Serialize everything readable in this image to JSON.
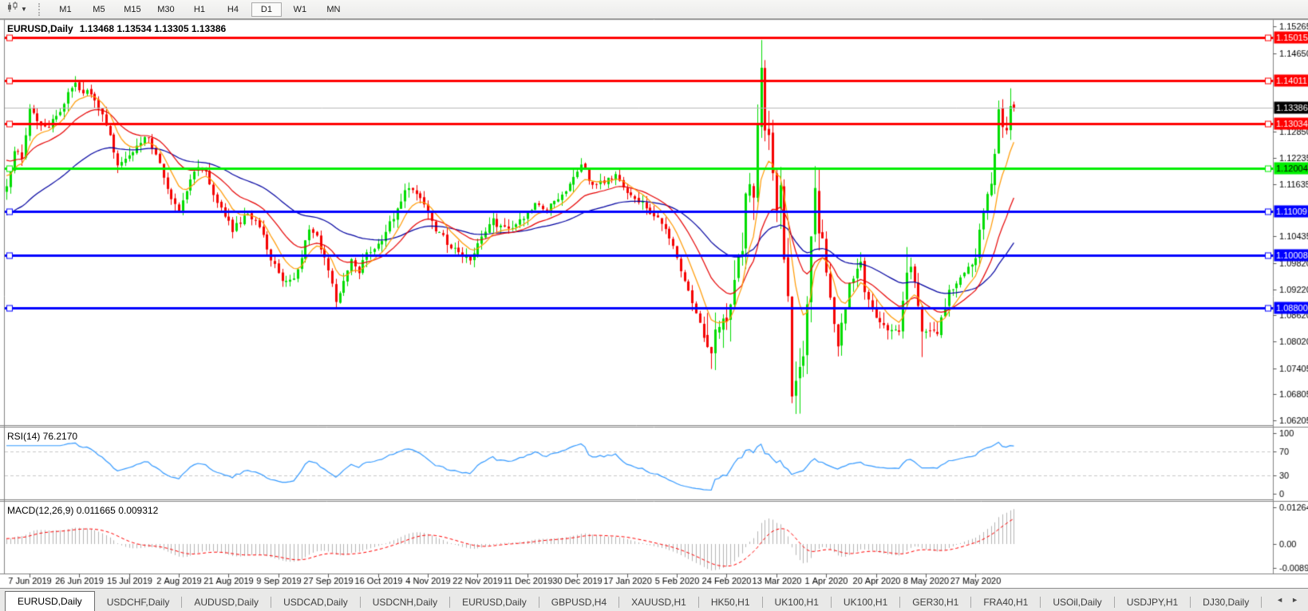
{
  "toolbar": {
    "timeframes": [
      "M1",
      "M5",
      "M15",
      "M30",
      "H1",
      "H4",
      "D1",
      "W1",
      "MN"
    ],
    "active_timeframe": "D1"
  },
  "chart": {
    "symbol_title": "EURUSD,Daily",
    "ohlc_text": "1.13468 1.13534 1.13305 1.13386"
  },
  "rsi_panel": {
    "label": "RSI(14) 76.2170"
  },
  "macd_panel": {
    "label": "MACD(12,26,9) 0.011665 0.009312"
  },
  "tabs": {
    "items": [
      "EURUSD,Daily",
      "USDCHF,Daily",
      "AUDUSD,Daily",
      "USDCAD,Daily",
      "USDCNH,Daily",
      "EURUSD,Daily",
      "GBPUSD,H4",
      "XAUUSD,H1",
      "HK50,H1",
      "UK100,H1",
      "UK100,H1",
      "GER30,H1",
      "FRA40,H1",
      "USOil,Daily",
      "USDJPY,H1",
      "DJ30,Daily"
    ],
    "active_index": 0
  },
  "chart_data": {
    "type": "candlestick+indicators",
    "symbol": "EURUSD",
    "timeframe": "Daily",
    "current_candle": {
      "open": 1.13468,
      "high": 1.13534,
      "low": 1.13305,
      "close": 1.13386
    },
    "candle_count": 264,
    "candle_colors": {
      "bull": "#00DC00",
      "bear": "#F50000"
    },
    "y_ticks": [
      "1.15265",
      "1.14650",
      "1.12850",
      "1.12235",
      "1.11635",
      "1.10435",
      "1.09820",
      "1.09220",
      "1.08620",
      "1.08020",
      "1.07405",
      "1.06805",
      "1.06205"
    ],
    "hlines": [
      {
        "price": 1.15015,
        "label": "1.15015",
        "color": "#FF0000",
        "text_color": "#FFFFFF"
      },
      {
        "price": 1.14011,
        "label": "1.14011",
        "color": "#FF0000",
        "text_color": "#FFFFFF"
      },
      {
        "price": 1.13034,
        "label": "1.13034",
        "color": "#FF0000",
        "text_color": "#FFFFFF"
      },
      {
        "price": 1.12004,
        "label": "1.12004",
        "color": "#00EE00",
        "text_color": "#000000"
      },
      {
        "price": 1.11009,
        "label": "1.11009",
        "color": "#0000FF",
        "text_color": "#FFFFFF"
      },
      {
        "price": 1.10008,
        "label": "1.10008",
        "color": "#0000FF",
        "text_color": "#FFFFFF"
      },
      {
        "price": 1.088,
        "label": "1.08800",
        "color": "#0000FF",
        "text_color": "#FFFFFF"
      }
    ],
    "current_price": {
      "value": 1.13386,
      "label": "1.13386",
      "line_color": "#B8B8B8",
      "badge_bg": "#000000",
      "badge_text": "#FFFFFF"
    },
    "x_labels": [
      "7 Jun 2019",
      "26 Jun 2019",
      "15 Jul 2019",
      "2 Aug 2019",
      "21 Aug 2019",
      "9 Sep 2019",
      "27 Sep 2019",
      "16 Oct 2019",
      "4 Nov 2019",
      "22 Nov 2019",
      "11 Dec 2019",
      "30 Dec 2019",
      "17 Jan 2020",
      "5 Feb 2020",
      "24 Feb 2020",
      "13 Mar 2020",
      "1 Apr 2020",
      "20 Apr 2020",
      "8 May 2020",
      "27 May 2020"
    ],
    "first_label_index": 6,
    "label_step": 13,
    "price_path_anchors": [
      [
        0,
        1.1165
      ],
      [
        2,
        1.1241
      ],
      [
        4,
        1.1222
      ],
      [
        5,
        1.1276
      ],
      [
        6,
        1.1335
      ],
      [
        8,
        1.1308
      ],
      [
        10,
        1.129
      ],
      [
        12,
        1.131
      ],
      [
        14,
        1.133
      ],
      [
        16,
        1.1372
      ],
      [
        18,
        1.1395
      ],
      [
        20,
        1.1378
      ],
      [
        22,
        1.1368
      ],
      [
        25,
        1.1322
      ],
      [
        27,
        1.127
      ],
      [
        29,
        1.1208
      ],
      [
        32,
        1.1228
      ],
      [
        35,
        1.1262
      ],
      [
        37,
        1.1268
      ],
      [
        39,
        1.123
      ],
      [
        41,
        1.118
      ],
      [
        43,
        1.1125
      ],
      [
        45,
        1.1105
      ],
      [
        47,
        1.115
      ],
      [
        49,
        1.1195
      ],
      [
        51,
        1.1205
      ],
      [
        53,
        1.117
      ],
      [
        55,
        1.112
      ],
      [
        57,
        1.109
      ],
      [
        59,
        1.106
      ],
      [
        61,
        1.1075
      ],
      [
        63,
        1.1095
      ],
      [
        65,
        1.108
      ],
      [
        67,
        1.104
      ],
      [
        69,
        1.099
      ],
      [
        71,
        1.096
      ],
      [
        73,
        1.0935
      ],
      [
        75,
        1.094
      ],
      [
        77,
        1.0995
      ],
      [
        79,
        1.1065
      ],
      [
        81,
        1.104
      ],
      [
        83,
        1.099
      ],
      [
        85,
        1.093
      ],
      [
        86,
        1.09
      ],
      [
        88,
        1.0935
      ],
      [
        90,
        1.0985
      ],
      [
        92,
        1.0965
      ],
      [
        94,
        1.1
      ],
      [
        97,
        1.1025
      ],
      [
        99,
        1.1055
      ],
      [
        101,
        1.109
      ],
      [
        103,
        1.1125
      ],
      [
        105,
        1.116
      ],
      [
        108,
        1.113
      ],
      [
        110,
        1.1105
      ],
      [
        112,
        1.106
      ],
      [
        115,
        1.103
      ],
      [
        118,
        1.1005
      ],
      [
        121,
        1.0995
      ],
      [
        124,
        1.104
      ],
      [
        127,
        1.108
      ],
      [
        129,
        1.1065
      ],
      [
        132,
        1.106
      ],
      [
        135,
        1.1085
      ],
      [
        138,
        1.1115
      ],
      [
        141,
        1.111
      ],
      [
        144,
        1.1125
      ],
      [
        147,
        1.1165
      ],
      [
        150,
        1.121
      ],
      [
        153,
        1.116
      ],
      [
        156,
        1.1172
      ],
      [
        159,
        1.1185
      ],
      [
        162,
        1.115
      ],
      [
        165,
        1.1125
      ],
      [
        168,
        1.11
      ],
      [
        171,
        1.1075
      ],
      [
        174,
        1.102
      ],
      [
        175,
        1.0999
      ],
      [
        177,
        1.094
      ],
      [
        179,
        1.0895
      ],
      [
        181,
        1.084
      ],
      [
        183,
        1.079
      ],
      [
        184,
        1.0786
      ],
      [
        185,
        1.0846
      ],
      [
        188,
        1.0852
      ],
      [
        189,
        1.0881
      ],
      [
        191,
        1.0998
      ],
      [
        192,
        1.1026
      ],
      [
        193,
        1.1135
      ],
      [
        194,
        1.1172
      ],
      [
        195,
        1.1136
      ],
      [
        196,
        1.1284
      ],
      [
        197,
        1.1448
      ],
      [
        198,
        1.1281
      ],
      [
        199,
        1.127
      ],
      [
        200,
        1.1184
      ],
      [
        201,
        1.1105
      ],
      [
        202,
        1.118
      ],
      [
        203,
        1.0995
      ],
      [
        204,
        1.0915
      ],
      [
        205,
        1.0692
      ],
      [
        206,
        1.0698
      ],
      [
        207,
        1.0726
      ],
      [
        208,
        1.0787
      ],
      [
        209,
        1.088
      ],
      [
        210,
        1.103
      ],
      [
        211,
        1.114
      ],
      [
        212,
        1.1047
      ],
      [
        213,
        1.1031
      ],
      [
        214,
        1.0963
      ],
      [
        217,
        1.0793
      ],
      [
        220,
        1.093
      ],
      [
        223,
        1.098
      ],
      [
        224,
        1.091
      ],
      [
        227,
        1.0858
      ],
      [
        230,
        1.0821
      ],
      [
        233,
        1.083
      ],
      [
        235,
        1.0955
      ],
      [
        236,
        1.098
      ],
      [
        239,
        1.0834
      ],
      [
        243,
        1.0815
      ],
      [
        246,
        1.0915
      ],
      [
        249,
        1.0949
      ],
      [
        252,
        1.0982
      ],
      [
        253,
        1.1
      ],
      [
        255,
        1.1101
      ],
      [
        256,
        1.1134
      ],
      [
        257,
        1.1171
      ],
      [
        258,
        1.1234
      ],
      [
        259,
        1.1338
      ],
      [
        260,
        1.1291
      ],
      [
        261,
        1.1294
      ],
      [
        262,
        1.134
      ],
      [
        263,
        1.13386
      ]
    ],
    "default_volatility": 0.0042,
    "volatility_zones": [
      {
        "from": 183,
        "to": 213,
        "amp": 0.0115
      },
      {
        "from": 214,
        "to": 254,
        "amp": 0.0055
      },
      {
        "from": 255,
        "to": 263,
        "amp": 0.006
      }
    ],
    "wick_overrides": {
      "18": {
        "high": 1.1412
      },
      "86": {
        "low": 1.0879
      },
      "197": {
        "high": 1.1495,
        "low": 1.127
      },
      "205": {
        "low": 1.066
      },
      "207": {
        "low": 1.0636
      },
      "235": {
        "high": 1.1019
      },
      "239": {
        "low": 1.0766
      },
      "262": {
        "high": 1.1384
      },
      "263": {
        "open": 1.13468,
        "high": 1.13534,
        "low": 1.13305,
        "close": 1.13386
      }
    },
    "moving_averages": [
      {
        "period": 50,
        "color": "#0000A0",
        "seed": 1.109
      },
      {
        "period": 20,
        "color": "#E60000",
        "seed": 1.1225
      },
      {
        "period": 8,
        "color": "#FF9900",
        "seed": 1.119
      }
    ],
    "rsi": {
      "period": 14,
      "value": "76.2170",
      "overbought": 70,
      "oversold": 30,
      "scale_ticks": [
        "100",
        "70",
        "30",
        "0"
      ],
      "line_color": "#3399FF",
      "level_color": "#C8C8C8"
    },
    "macd": {
      "fast": 12,
      "slow": 26,
      "signal": 9,
      "values": "0.011665 0.009312",
      "axis_ticks": [
        {
          "label": "0.012645",
          "value": 0.012645
        },
        {
          "label": "0.00",
          "value": 0
        },
        {
          "label": "-0.00891",
          "value": -0.00891
        }
      ],
      "hist_color": "#B4B4B4",
      "signal_color": "#FF0000"
    }
  }
}
